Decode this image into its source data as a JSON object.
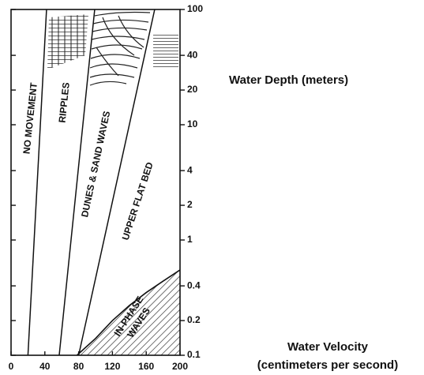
{
  "chart_data": {
    "type": "region",
    "y_label": "Water Depth (meters)",
    "x_label": [
      "Water Velocity",
      "(centimeters per second)"
    ],
    "xlim": [
      0,
      200
    ],
    "ylim": [
      0.1,
      100
    ],
    "ylog": true,
    "xticks": [
      0,
      40,
      80,
      120,
      160,
      200
    ],
    "yticks": [
      100,
      40,
      20,
      10,
      4,
      2,
      1,
      0.4,
      0.2,
      0.1
    ],
    "boundaries": [
      {
        "x": [
          20,
          42
        ],
        "y": [
          0.1,
          100
        ]
      },
      {
        "x": [
          57,
          99
        ],
        "y": [
          0.1,
          100
        ]
      },
      {
        "x": [
          80,
          170
        ],
        "y": [
          0.1,
          100
        ]
      }
    ],
    "in_phase_boundary": {
      "x": [
        78,
        100,
        120,
        140,
        160,
        180,
        200
      ],
      "y": [
        0.1,
        0.14,
        0.2,
        0.27,
        0.35,
        0.44,
        0.55
      ]
    },
    "regions": [
      "NO MOVEMENT",
      "RIPPLES",
      "DUNES & SAND WAVES",
      "UPPER FLAT BED",
      [
        "IN-PHASE",
        "WAVES"
      ]
    ]
  }
}
